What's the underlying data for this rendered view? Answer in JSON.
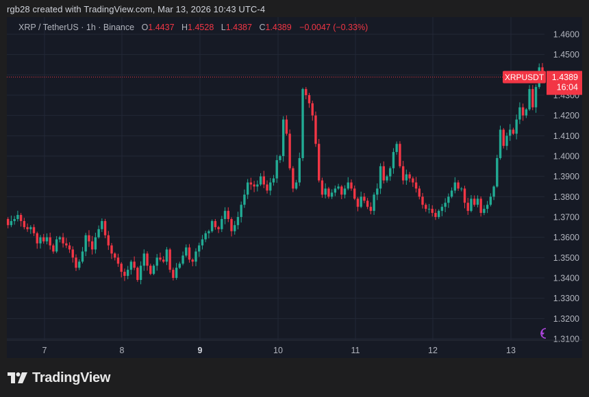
{
  "attribution": "rgb28 created with TradingView.com, Mar 13, 2026 10:43 UTC-4",
  "legend": {
    "symbol": "XRP / TetherUS · 1h · Binance",
    "open_label": "O",
    "open": "1.4437",
    "high_label": "H",
    "high": "1.4528",
    "low_label": "L",
    "low": "1.4387",
    "close_label": "C",
    "close": "1.4389",
    "change": "−0.0047 (−0.33%)"
  },
  "price_tag": {
    "symbol": "XRPUSDT",
    "price": "1.4389",
    "countdown": "16:04"
  },
  "logo": {
    "text": "TradingView"
  },
  "colors": {
    "up": "#22ab94",
    "down": "#f23645",
    "grid": "#232836",
    "axis_text": "#b2b5be",
    "background": "#161a25",
    "badge": "#f23645",
    "alert_icon": "#b046e0"
  },
  "chart_data": {
    "type": "candlestick",
    "title": "XRP / TetherUS · 1h · Binance",
    "xlabel": "",
    "ylabel": "",
    "ylim": [
      1.305,
      1.467
    ],
    "y_ticks": [
      "1.4600",
      "1.4500",
      "1.4400",
      "1.4300",
      "1.4200",
      "1.4100",
      "1.4000",
      "1.3900",
      "1.3800",
      "1.3700",
      "1.3600",
      "1.3500",
      "1.3400",
      "1.3300",
      "1.3200",
      "1.3100"
    ],
    "x_ticks": [
      "7",
      "8",
      "9",
      "10",
      "11",
      "12",
      "13"
    ],
    "x_ticks_bold": [
      "9"
    ],
    "current_price": 1.4389,
    "grid": true,
    "closes": [
      1.356,
      1.365,
      1.366,
      1.37,
      1.364,
      1.364,
      1.37,
      1.37,
      1.364,
      1.37,
      1.369,
      1.368,
      1.369,
      1.366,
      1.368,
      1.369,
      1.371,
      1.368,
      1.365,
      1.364,
      1.365,
      1.362,
      1.357,
      1.36,
      1.358,
      1.36,
      1.356,
      1.353,
      1.359,
      1.36,
      1.357,
      1.356,
      1.354,
      1.35,
      1.345,
      1.348,
      1.353,
      1.361,
      1.358,
      1.354,
      1.36,
      1.364,
      1.368,
      1.361,
      1.356,
      1.352,
      1.35,
      1.347,
      1.343,
      1.341,
      1.344,
      1.348,
      1.345,
      1.339,
      1.346,
      1.352,
      1.346,
      1.342,
      1.346,
      1.35,
      1.349,
      1.348,
      1.354,
      1.344,
      1.34,
      1.345,
      1.347,
      1.351,
      1.355,
      1.349,
      1.348,
      1.353,
      1.356,
      1.359,
      1.362,
      1.363,
      1.368,
      1.365,
      1.364,
      1.369,
      1.373,
      1.369,
      1.363,
      1.366,
      1.37,
      1.376,
      1.381,
      1.387,
      1.386,
      1.385,
      1.386,
      1.39,
      1.386,
      1.383,
      1.387,
      1.389,
      1.398,
      1.4,
      1.418,
      1.411,
      1.394,
      1.384,
      1.387,
      1.399,
      1.433,
      1.43,
      1.426,
      1.42,
      1.406,
      1.388,
      1.381,
      1.384,
      1.38,
      1.382,
      1.384,
      1.385,
      1.381,
      1.384,
      1.387,
      1.384,
      1.379,
      1.375,
      1.38,
      1.378,
      1.375,
      1.373,
      1.381,
      1.384,
      1.395,
      1.388,
      1.39,
      1.394,
      1.402,
      1.406,
      1.395,
      1.388,
      1.391,
      1.389,
      1.387,
      1.384,
      1.38,
      1.376,
      1.374,
      1.374,
      1.372,
      1.37,
      1.373,
      1.375,
      1.377,
      1.38,
      1.383,
      1.387,
      1.384,
      1.384,
      1.377,
      1.373,
      1.379,
      1.376,
      1.379,
      1.372,
      1.374,
      1.376,
      1.38,
      1.385,
      1.399,
      1.413,
      1.405,
      1.41,
      1.413,
      1.411,
      1.418,
      1.424,
      1.42,
      1.423,
      1.433,
      1.424,
      1.434,
      1.4437,
      1.4389
    ]
  },
  "alert_icon": "lightning-icon"
}
